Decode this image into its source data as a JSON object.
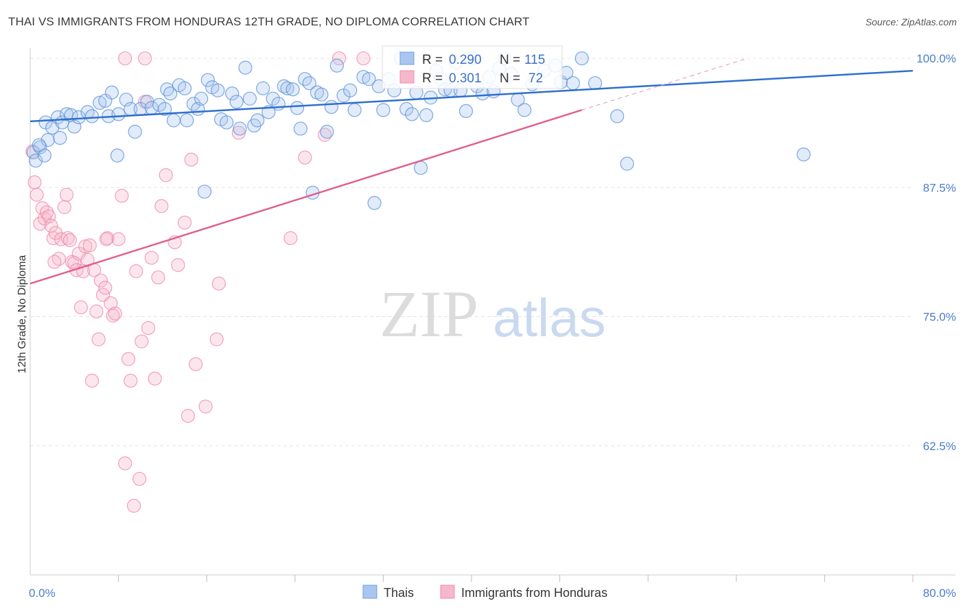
{
  "header": {
    "title": "THAI VS IMMIGRANTS FROM HONDURAS 12TH GRADE, NO DIPLOMA CORRELATION CHART",
    "source": "Source: ZipAtlas.com"
  },
  "watermark": {
    "zip": "ZIP",
    "atlas": "atlas"
  },
  "legend_box": {
    "rows": [
      {
        "r_label": "R =",
        "r_value": "0.290",
        "n_label": "N =",
        "n_value": "115",
        "color": "#a9c6ee"
      },
      {
        "r_label": "R =",
        "r_value": "0.301",
        "n_label": "N =",
        "n_value": "72",
        "color": "#f5b8cb"
      }
    ]
  },
  "bottom_legend": [
    {
      "label": "Thais",
      "color": "#a9c6ee"
    },
    {
      "label": "Immigrants from Honduras",
      "color": "#f5b8cb"
    }
  ],
  "chart_data": {
    "type": "scatter",
    "title": "THAI VS IMMIGRANTS FROM HONDURAS 12TH GRADE, NO DIPLOMA CORRELATION CHART",
    "xlabel": "",
    "ylabel": "12th Grade, No Diploma",
    "xlim": [
      0,
      80
    ],
    "ylim": [
      50,
      101
    ],
    "x_tick_labels": [
      "0.0%",
      "80.0%"
    ],
    "y_tick_labels": [
      "100.0%",
      "87.5%",
      "75.0%",
      "62.5%"
    ],
    "y_ticks": [
      100,
      87.5,
      75,
      62.5
    ],
    "grid": true,
    "legend_position": "bottom",
    "colors": {
      "thais": "#4a86d8",
      "thais_line": "#2f6fcf",
      "honduras": "#f08aaa",
      "honduras_line": "#e06090"
    },
    "series": [
      {
        "name": "Thais",
        "trend": {
          "x": [
            0,
            80
          ],
          "y": [
            93.9,
            98.8
          ]
        },
        "points": [
          [
            0.3,
            90.9
          ],
          [
            0.5,
            90.1
          ],
          [
            0.9,
            91.4
          ],
          [
            1.3,
            90.6
          ],
          [
            1.6,
            92.1
          ],
          [
            1.4,
            93.8
          ],
          [
            2.0,
            93.3
          ],
          [
            2.5,
            94.3
          ],
          [
            2.9,
            93.8
          ],
          [
            3.3,
            94.6
          ],
          [
            3.7,
            94.5
          ],
          [
            4.0,
            93.4
          ],
          [
            4.4,
            94.3
          ],
          [
            5.2,
            94.8
          ],
          [
            5.6,
            94.4
          ],
          [
            6.3,
            95.7
          ],
          [
            6.8,
            95.9
          ],
          [
            7.1,
            94.4
          ],
          [
            7.4,
            96.7
          ],
          [
            8.0,
            94.6
          ],
          [
            8.7,
            96.0
          ],
          [
            9.1,
            95.1
          ],
          [
            9.5,
            92.9
          ],
          [
            10.0,
            95.1
          ],
          [
            10.6,
            95.8
          ],
          [
            11.0,
            95.2
          ],
          [
            11.7,
            95.5
          ],
          [
            12.2,
            95.1
          ],
          [
            12.4,
            97.0
          ],
          [
            12.7,
            96.6
          ],
          [
            13.0,
            94.0
          ],
          [
            13.5,
            97.4
          ],
          [
            14.0,
            97.1
          ],
          [
            14.2,
            94.0
          ],
          [
            14.8,
            95.6
          ],
          [
            15.2,
            95.1
          ],
          [
            15.5,
            96.1
          ],
          [
            15.8,
            87.1
          ],
          [
            16.1,
            97.9
          ],
          [
            16.5,
            97.2
          ],
          [
            17.0,
            96.9
          ],
          [
            17.3,
            94.1
          ],
          [
            17.8,
            93.8
          ],
          [
            18.3,
            96.6
          ],
          [
            18.7,
            95.8
          ],
          [
            19.0,
            93.2
          ],
          [
            19.5,
            99.1
          ],
          [
            19.9,
            96.1
          ],
          [
            20.3,
            93.5
          ],
          [
            20.6,
            94.0
          ],
          [
            21.1,
            97.1
          ],
          [
            21.6,
            94.8
          ],
          [
            22.0,
            96.1
          ],
          [
            22.5,
            95.6
          ],
          [
            23.0,
            97.3
          ],
          [
            23.3,
            97.1
          ],
          [
            23.8,
            97.0
          ],
          [
            24.2,
            95.2
          ],
          [
            24.5,
            93.2
          ],
          [
            24.9,
            98.0
          ],
          [
            25.3,
            97.6
          ],
          [
            25.6,
            87.0
          ],
          [
            26.0,
            96.7
          ],
          [
            26.4,
            96.5
          ],
          [
            26.9,
            92.9
          ],
          [
            27.3,
            95.3
          ],
          [
            27.8,
            99.3
          ],
          [
            28.4,
            96.4
          ],
          [
            29.0,
            96.9
          ],
          [
            29.4,
            95.0
          ],
          [
            30.2,
            98.2
          ],
          [
            30.7,
            98.0
          ],
          [
            31.2,
            86.0
          ],
          [
            31.6,
            97.3
          ],
          [
            32.0,
            95.0
          ],
          [
            32.5,
            98.0
          ],
          [
            33.0,
            96.9
          ],
          [
            33.6,
            100.0
          ],
          [
            34.1,
            95.1
          ],
          [
            34.6,
            94.6
          ],
          [
            35.0,
            96.7
          ],
          [
            35.4,
            89.4
          ],
          [
            35.9,
            94.5
          ],
          [
            36.3,
            96.2
          ],
          [
            36.8,
            98.8
          ],
          [
            37.2,
            98.0
          ],
          [
            37.6,
            97.0
          ],
          [
            38.1,
            96.9
          ],
          [
            38.6,
            99.6
          ],
          [
            39.0,
            96.9
          ],
          [
            39.5,
            94.9
          ],
          [
            40.0,
            100.0
          ],
          [
            40.5,
            97.3
          ],
          [
            41.0,
            96.6
          ],
          [
            41.6,
            98.2
          ],
          [
            42.0,
            96.8
          ],
          [
            42.5,
            99.0
          ],
          [
            43.0,
            100.0
          ],
          [
            43.6,
            98.5
          ],
          [
            44.2,
            96.0
          ],
          [
            44.8,
            95.0
          ],
          [
            45.5,
            97.5
          ],
          [
            46.6,
            98.8
          ],
          [
            47.6,
            99.3
          ],
          [
            48.1,
            97.7
          ],
          [
            48.6,
            98.6
          ],
          [
            49.2,
            97.6
          ],
          [
            50.0,
            100.0
          ],
          [
            51.2,
            97.6
          ],
          [
            53.2,
            94.4
          ],
          [
            54.1,
            89.8
          ],
          [
            70.1,
            90.7
          ],
          [
            0.8,
            91.6
          ],
          [
            2.7,
            92.3
          ],
          [
            7.9,
            90.6
          ]
        ]
      },
      {
        "name": "Immigrants from Honduras",
        "trend": {
          "x": [
            0,
            50
          ],
          "y": [
            78.2,
            95.0
          ]
        },
        "trend_dashed": {
          "x": [
            50,
            65
          ],
          "y": [
            95.0,
            100.0
          ]
        },
        "points": [
          [
            0.2,
            91.0
          ],
          [
            0.4,
            88.0
          ],
          [
            0.6,
            86.8
          ],
          [
            0.9,
            84.0
          ],
          [
            1.1,
            85.5
          ],
          [
            1.3,
            84.5
          ],
          [
            1.5,
            85.1
          ],
          [
            1.7,
            84.7
          ],
          [
            1.9,
            83.8
          ],
          [
            2.1,
            82.6
          ],
          [
            2.3,
            83.1
          ],
          [
            2.6,
            80.6
          ],
          [
            2.8,
            82.5
          ],
          [
            3.1,
            85.6
          ],
          [
            3.3,
            86.8
          ],
          [
            3.4,
            82.6
          ],
          [
            3.6,
            82.4
          ],
          [
            3.8,
            80.3
          ],
          [
            4.0,
            80.2
          ],
          [
            4.2,
            79.5
          ],
          [
            4.4,
            81.1
          ],
          [
            4.6,
            75.9
          ],
          [
            4.8,
            79.4
          ],
          [
            5.0,
            81.8
          ],
          [
            5.2,
            80.5
          ],
          [
            5.4,
            81.9
          ],
          [
            5.6,
            68.8
          ],
          [
            5.8,
            79.5
          ],
          [
            6.0,
            75.5
          ],
          [
            6.2,
            72.8
          ],
          [
            6.4,
            78.5
          ],
          [
            6.6,
            77.1
          ],
          [
            6.8,
            77.8
          ],
          [
            7.0,
            82.6
          ],
          [
            7.3,
            76.3
          ],
          [
            7.5,
            75.1
          ],
          [
            7.7,
            75.3
          ],
          [
            8.0,
            82.5
          ],
          [
            8.3,
            86.7
          ],
          [
            8.6,
            60.8
          ],
          [
            8.9,
            70.9
          ],
          [
            9.1,
            68.8
          ],
          [
            9.4,
            56.7
          ],
          [
            9.6,
            79.4
          ],
          [
            9.9,
            59.3
          ],
          [
            10.1,
            72.6
          ],
          [
            10.4,
            95.8
          ],
          [
            10.7,
            73.9
          ],
          [
            11.0,
            80.7
          ],
          [
            11.3,
            69.0
          ],
          [
            11.6,
            78.8
          ],
          [
            11.9,
            85.7
          ],
          [
            12.3,
            88.7
          ],
          [
            13.1,
            82.2
          ],
          [
            13.4,
            80.0
          ],
          [
            14.0,
            84.1
          ],
          [
            14.3,
            65.4
          ],
          [
            14.6,
            90.2
          ],
          [
            15.0,
            70.4
          ],
          [
            15.9,
            66.3
          ],
          [
            16.9,
            72.8
          ],
          [
            17.1,
            78.2
          ],
          [
            18.9,
            92.8
          ],
          [
            23.6,
            82.6
          ],
          [
            24.9,
            90.4
          ],
          [
            26.7,
            92.6
          ],
          [
            28.0,
            100.0
          ],
          [
            30.2,
            100.0
          ],
          [
            8.6,
            100.0
          ],
          [
            10.4,
            100.0
          ],
          [
            2.2,
            80.3
          ],
          [
            6.9,
            82.5
          ]
        ]
      }
    ]
  }
}
